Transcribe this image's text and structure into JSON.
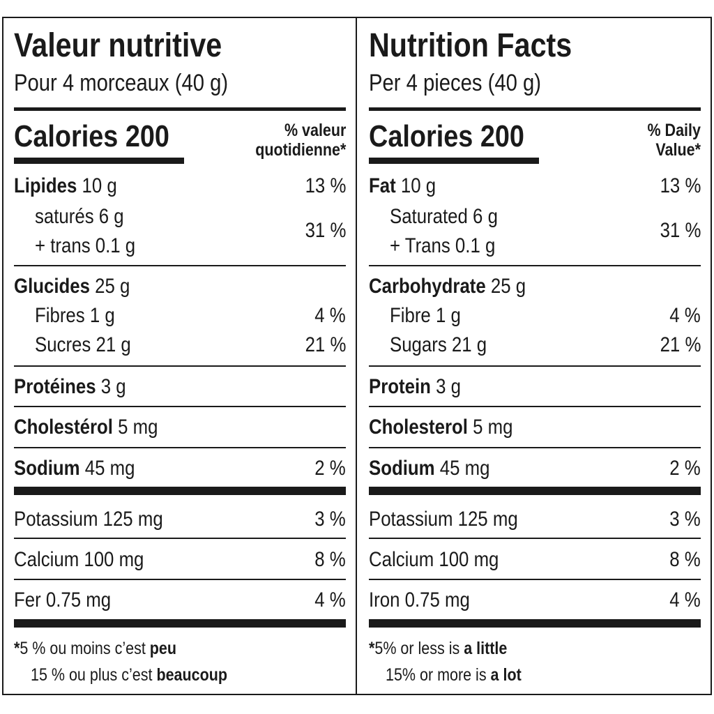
{
  "fr": {
    "title": "Valeur nutritive",
    "serving": "Pour 4 morceaux (40 g)",
    "calories_label": "Calories 200",
    "dv_line1": "% valeur",
    "dv_line2": "quotidienne",
    "dv_star": "*",
    "fat_label": "Lipides",
    "fat_amount": "10 g",
    "fat_pct": "13 %",
    "sat_label": "saturés 6 g",
    "trans_label": "+ trans 0.1 g",
    "sat_trans_pct": "31 %",
    "carb_label": "Glucides",
    "carb_amount": "25 g",
    "fibre_label": "Fibres 1 g",
    "fibre_pct": "4 %",
    "sugars_label": "Sucres 21 g",
    "sugars_pct": "21 %",
    "protein_label": "Protéines",
    "protein_amount": "3 g",
    "chol_label": "Cholestérol",
    "chol_amount": "5 mg",
    "sodium_label": "Sodium",
    "sodium_amount": "45 mg",
    "sodium_pct": "2 %",
    "potassium_label": "Potassium 125 mg",
    "potassium_pct": "3 %",
    "calcium_label": "Calcium 100 mg",
    "calcium_pct": "8 %",
    "iron_label": "Fer 0.75 mg",
    "iron_pct": "4 %",
    "foot_star": "*",
    "foot1_text": "5 % ou moins c’est ",
    "foot1_bold": "peu",
    "foot2_text": "15 % ou plus c’est ",
    "foot2_bold": "beaucoup"
  },
  "en": {
    "title": "Nutrition Facts",
    "serving": "Per 4 pieces (40 g)",
    "calories_label": "Calories 200",
    "dv_line1": "% Daily",
    "dv_line2": "Value",
    "dv_star": "*",
    "fat_label": "Fat",
    "fat_amount": "10 g",
    "fat_pct": "13 %",
    "sat_label": "Saturated 6 g",
    "trans_label": "+ Trans 0.1 g",
    "sat_trans_pct": "31 %",
    "carb_label": "Carbohydrate",
    "carb_amount": "25 g",
    "fibre_label": "Fibre 1 g",
    "fibre_pct": "4 %",
    "sugars_label": "Sugars 21 g",
    "sugars_pct": "21 %",
    "protein_label": "Protein",
    "protein_amount": "3 g",
    "chol_label": "Cholesterol",
    "chol_amount": "5 mg",
    "sodium_label": "Sodium",
    "sodium_amount": "45 mg",
    "sodium_pct": "2 %",
    "potassium_label": "Potassium 125 mg",
    "potassium_pct": "3 %",
    "calcium_label": "Calcium 100 mg",
    "calcium_pct": "8 %",
    "iron_label": "Iron 0.75 mg",
    "iron_pct": "4 %",
    "foot_star": "*",
    "foot1_text": "5% or less is ",
    "foot1_bold": "a little",
    "foot2_text": "15% or more is ",
    "foot2_bold": "a lot"
  }
}
